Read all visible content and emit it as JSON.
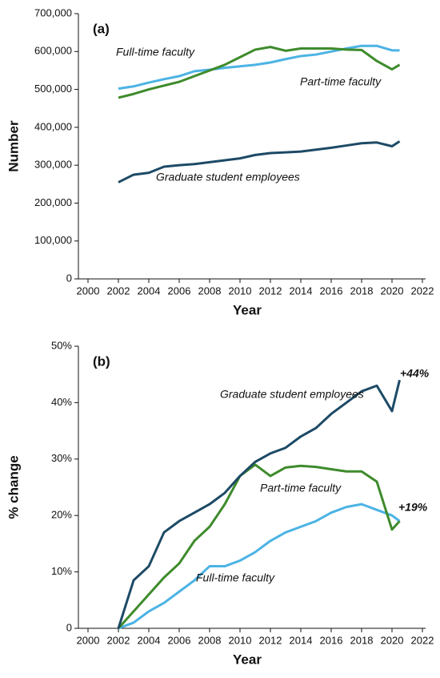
{
  "chart_data": [
    {
      "type": "line",
      "panel_label": "(a)",
      "x_label": "Year",
      "y_label": "Number",
      "x": [
        2002,
        2003,
        2004,
        2005,
        2006,
        2007,
        2008,
        2009,
        2010,
        2011,
        2012,
        2013,
        2014,
        2015,
        2016,
        2017,
        2018,
        2019,
        2020,
        2020.5
      ],
      "series": [
        {
          "name": "Full-time faculty",
          "color": "#4cb3e4",
          "values": [
            502000,
            508000,
            518000,
            527000,
            535000,
            548000,
            552000,
            557000,
            561000,
            565000,
            571000,
            580000,
            588000,
            592000,
            600000,
            608000,
            615000,
            615000,
            603000,
            603000
          ]
        },
        {
          "name": "Part-time faculty",
          "color": "#3e8b2c",
          "values": [
            478000,
            488000,
            500000,
            510000,
            520000,
            535000,
            550000,
            565000,
            585000,
            605000,
            612000,
            602000,
            608000,
            608000,
            608000,
            605000,
            604000,
            575000,
            553000,
            565000
          ]
        },
        {
          "name": "Graduate student employees",
          "color": "#1d4a66",
          "values": [
            255000,
            275000,
            280000,
            296000,
            300000,
            303000,
            308000,
            313000,
            318000,
            327000,
            332000,
            334000,
            336000,
            341000,
            346000,
            352000,
            358000,
            360000,
            350000,
            363000
          ]
        }
      ],
      "xlim": [
        2000,
        2022
      ],
      "xticks": [
        2000,
        2002,
        2004,
        2006,
        2008,
        2010,
        2012,
        2014,
        2016,
        2018,
        2020,
        2022
      ],
      "ylim": [
        0,
        700000
      ],
      "yticks": [
        0,
        {
          "value": 100000,
          "label": "100,000"
        },
        {
          "value": 200000,
          "label": "200,000"
        },
        {
          "value": 300000,
          "label": "300,000"
        },
        {
          "value": 400000,
          "label": "400,000"
        },
        {
          "value": 500000,
          "label": "500,000"
        },
        {
          "value": 600000,
          "label": "600,000"
        },
        {
          "value": 700000,
          "label": "700,000"
        }
      ],
      "annotations": []
    },
    {
      "type": "line",
      "panel_label": "(b)",
      "x_label": "Year",
      "y_label": "% change",
      "x": [
        2002,
        2003,
        2004,
        2005,
        2006,
        2007,
        2008,
        2009,
        2010,
        2011,
        2012,
        2013,
        2014,
        2015,
        2016,
        2017,
        2018,
        2019,
        2020,
        2020.5
      ],
      "series": [
        {
          "name": "Full-time faculty",
          "color": "#4cb3e4",
          "values": [
            0,
            1,
            3,
            4.5,
            6.5,
            8.5,
            11,
            11,
            12,
            13.5,
            15.5,
            17,
            18,
            19,
            20.5,
            21.5,
            22,
            21,
            20,
            19
          ]
        },
        {
          "name": "Part-time faculty",
          "color": "#3e8b2c",
          "values": [
            0,
            3,
            6,
            9,
            11.5,
            15.5,
            18,
            22,
            27,
            29,
            27,
            28.5,
            28.8,
            28.6,
            28.2,
            27.8,
            27.8,
            26,
            17.5,
            19
          ]
        },
        {
          "name": "Graduate student employees",
          "color": "#1d4a66",
          "values": [
            0,
            8.5,
            11,
            17,
            19,
            20.5,
            22,
            24,
            27,
            29.5,
            31,
            32,
            34,
            35.5,
            38,
            40,
            42,
            43,
            38.5,
            44
          ]
        }
      ],
      "xlim": [
        2000,
        2022
      ],
      "xticks": [
        2000,
        2002,
        2004,
        2006,
        2008,
        2010,
        2012,
        2014,
        2016,
        2018,
        2020,
        2022
      ],
      "ylim": [
        0,
        50
      ],
      "yticks": [
        0,
        {
          "value": 10,
          "label": "10%"
        },
        {
          "value": 20,
          "label": "20%"
        },
        {
          "value": 30,
          "label": "30%"
        },
        {
          "value": 40,
          "label": "40%"
        },
        {
          "value": 50,
          "label": "50%"
        }
      ],
      "annotations": [
        "+44%",
        "+19%"
      ]
    }
  ]
}
